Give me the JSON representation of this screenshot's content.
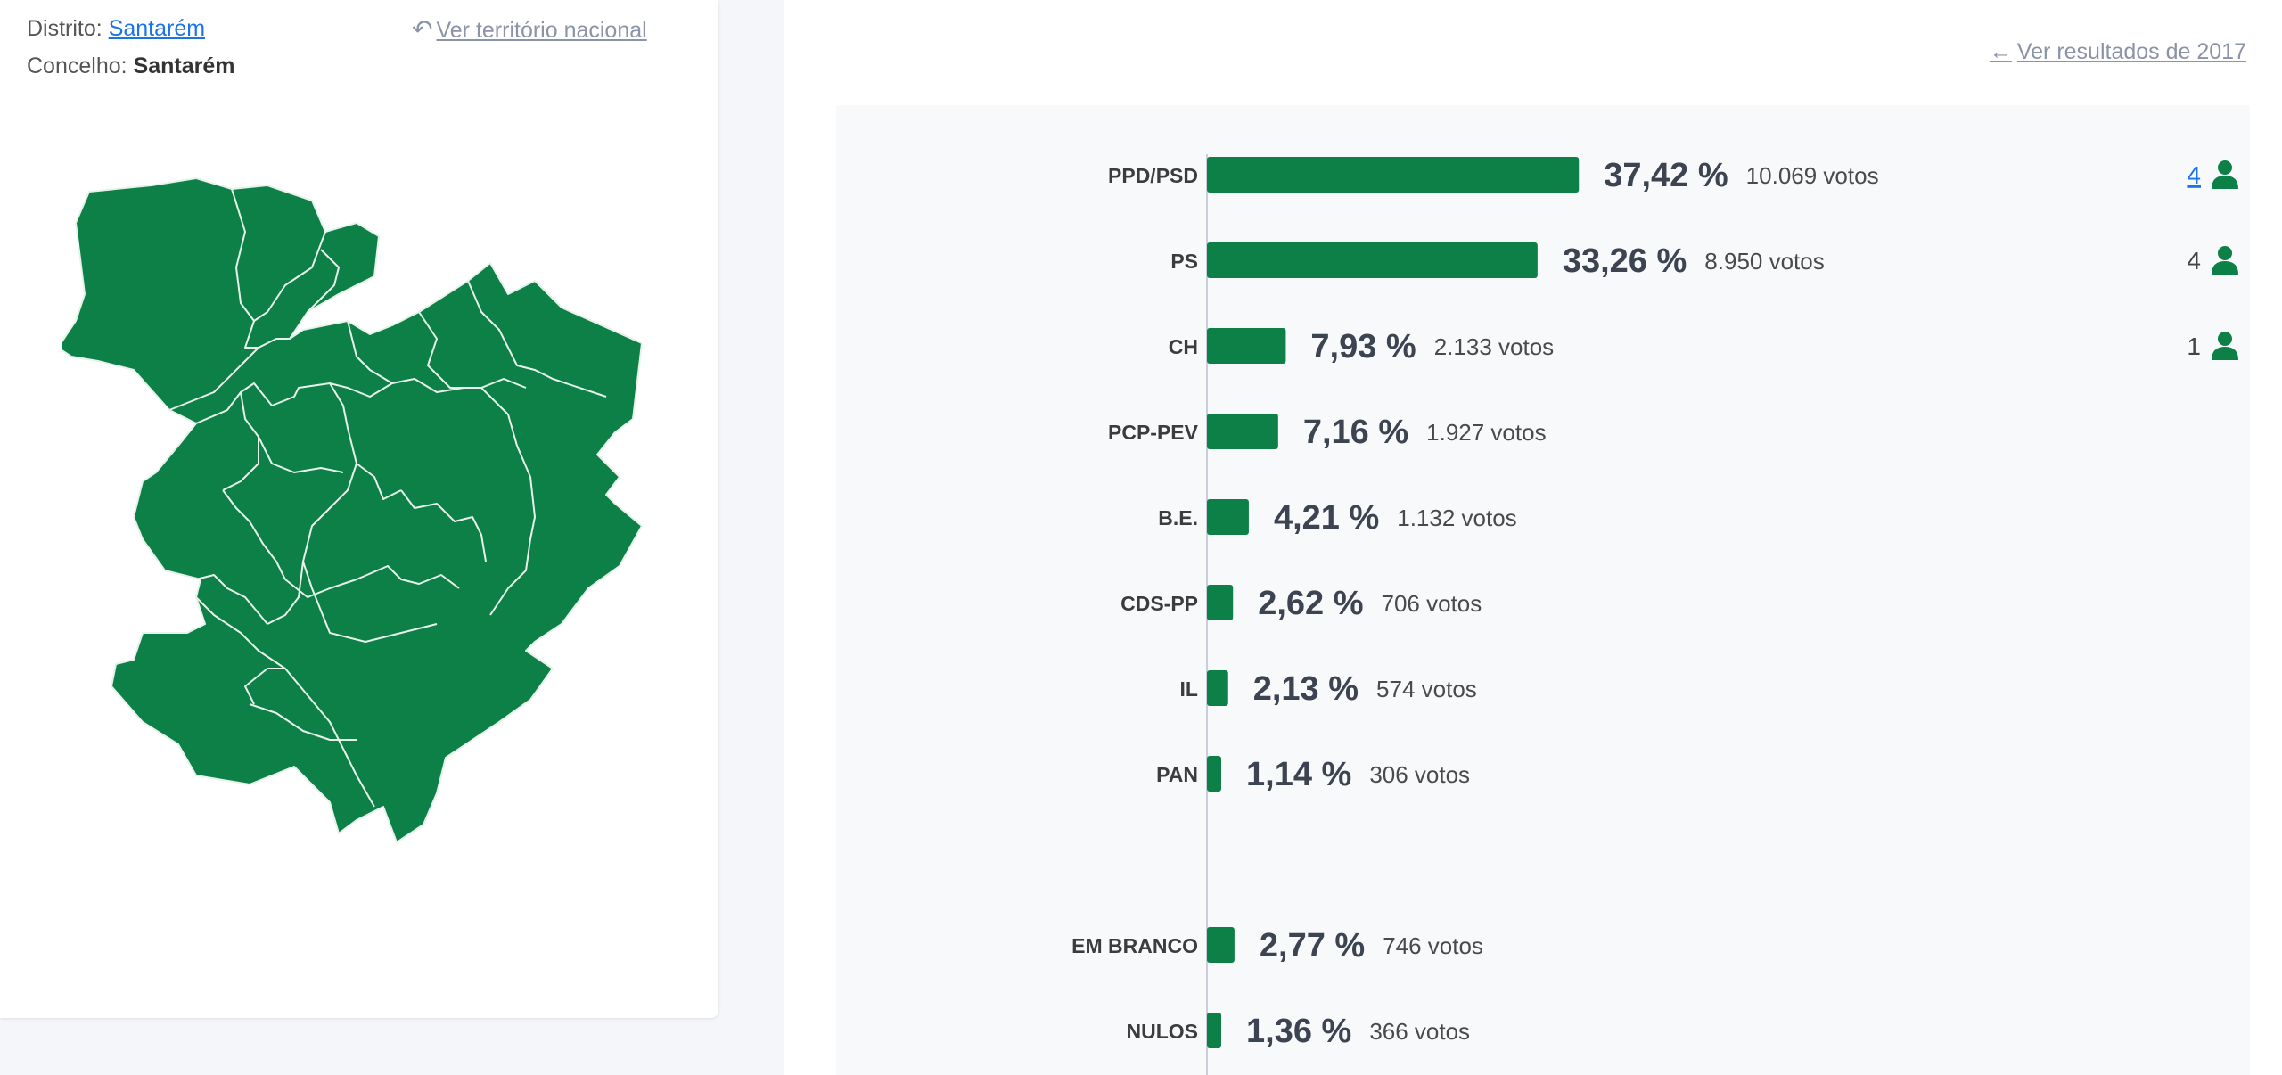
{
  "location": {
    "distrito_label": "Distrito:",
    "distrito_value": "Santarém",
    "concelho_label": "Concelho:",
    "concelho_value": "Santarém",
    "national_link": "Ver território nacional"
  },
  "results_link": "Ver resultados de 2017",
  "icons": {
    "undo": "undo-icon",
    "arrow_left": "arrow-left-icon",
    "person": "person-icon"
  },
  "colors": {
    "bar": "#0c8046",
    "map_fill": "#0c8046",
    "map_stroke": "#e6f2ea",
    "link": "#1a73e8",
    "muted_link": "#8a94a6"
  },
  "chart_data": {
    "type": "bar",
    "orientation": "horizontal",
    "categories": [
      "PPD/PSD",
      "PS",
      "CH",
      "PCP-PEV",
      "B.E.",
      "CDS-PP",
      "IL",
      "PAN",
      "EM BRANCO",
      "NULOS"
    ],
    "values": [
      37.42,
      33.26,
      7.93,
      7.16,
      4.21,
      2.62,
      2.13,
      1.14,
      2.77,
      1.36
    ],
    "value_labels": [
      "37,42 %",
      "33,26 %",
      "7,93 %",
      "7,16 %",
      "4,21 %",
      "2,62 %",
      "2,13 %",
      "1,14 %",
      "2,77 %",
      "1,36 %"
    ],
    "votes": [
      "10.069 votos",
      "8.950 votos",
      "2.133 votos",
      "1.927 votos",
      "1.132 votos",
      "706 votos",
      "574 votos",
      "306 votos",
      "746 votos",
      "366 votos"
    ],
    "seats": [
      "4",
      "4",
      "1",
      "",
      "",
      "",
      "",
      "",
      "",
      ""
    ],
    "seat_link_index": 0,
    "xlim": [
      0,
      100
    ],
    "grid": false,
    "legend": "none",
    "title": "",
    "xlabel": "",
    "ylabel": ""
  }
}
